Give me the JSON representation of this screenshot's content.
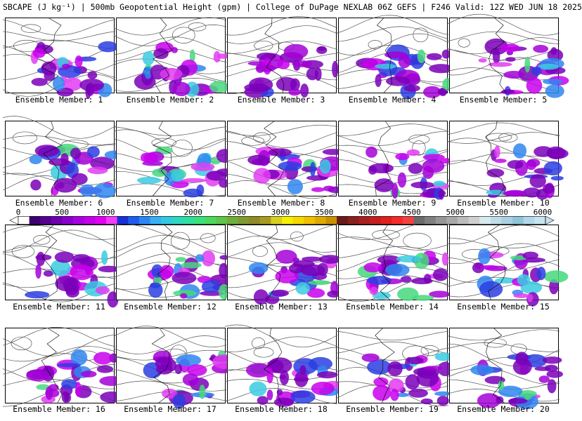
{
  "header": {
    "title": "SBCAPE (J kg⁻¹) | 500mb Geopotential Height (gpm) | College of DuPage NEXLAB 06Z GEFS | F246 Valid: 12Z WED JUN 18 2025"
  },
  "panels": [
    {
      "label": "Ensemble Member: 1"
    },
    {
      "label": "Ensemble Member: 2"
    },
    {
      "label": "Ensemble Member: 3"
    },
    {
      "label": "Ensemble Member: 4"
    },
    {
      "label": "Ensemble Member: 5"
    },
    {
      "label": "Ensemble Member: 6"
    },
    {
      "label": "Ensemble Member: 7"
    },
    {
      "label": "Ensemble Member: 8"
    },
    {
      "label": "Ensemble Member: 9"
    },
    {
      "label": "Ensemble Member: 10"
    },
    {
      "label": "Ensemble Member: 11"
    },
    {
      "label": "Ensemble Member: 12"
    },
    {
      "label": "Ensemble Member: 13"
    },
    {
      "label": "Ensemble Member: 14"
    },
    {
      "label": "Ensemble Member: 15"
    },
    {
      "label": "Ensemble Member: 16"
    },
    {
      "label": "Ensemble Member: 17"
    },
    {
      "label": "Ensemble Member: 18"
    },
    {
      "label": "Ensemble Member: 19"
    },
    {
      "label": "Ensemble Member: 20"
    }
  ],
  "colorbar": {
    "tick_labels": [
      "0",
      "500",
      "1000",
      "1500",
      "2000",
      "2500",
      "3000",
      "3500",
      "4000",
      "4500",
      "5000",
      "5500",
      "6000"
    ],
    "colors": [
      "#ffffff",
      "#3d0070",
      "#55008f",
      "#6e00b0",
      "#8a00cc",
      "#a800e0",
      "#c400e8",
      "#e000f0",
      "#f23cf5",
      "#1a2fd6",
      "#1f5cf0",
      "#2b86f5",
      "#3aaef5",
      "#33c8e0",
      "#2fd6c0",
      "#2ee0a0",
      "#3ae07a",
      "#4cd85c",
      "#5fc44a",
      "#6fae3c",
      "#7f9a30",
      "#8f8a26",
      "#a89a20",
      "#d8d020",
      "#f5f000",
      "#f5d800",
      "#f0c000",
      "#e0a800",
      "#c89000",
      "#6b1a1a",
      "#8a1f1f",
      "#a81f1f",
      "#c41f1f",
      "#e01f1f",
      "#f52a2a",
      "#f54040",
      "#6b6b6b",
      "#808080",
      "#959595",
      "#a8a8a8",
      "#bbbbbb",
      "#cfcfcf",
      "#d8eaf0",
      "#c0dce8",
      "#a8d0e0",
      "#90c4d8",
      "#b0d8e8",
      "#c8e4f0"
    ]
  }
}
